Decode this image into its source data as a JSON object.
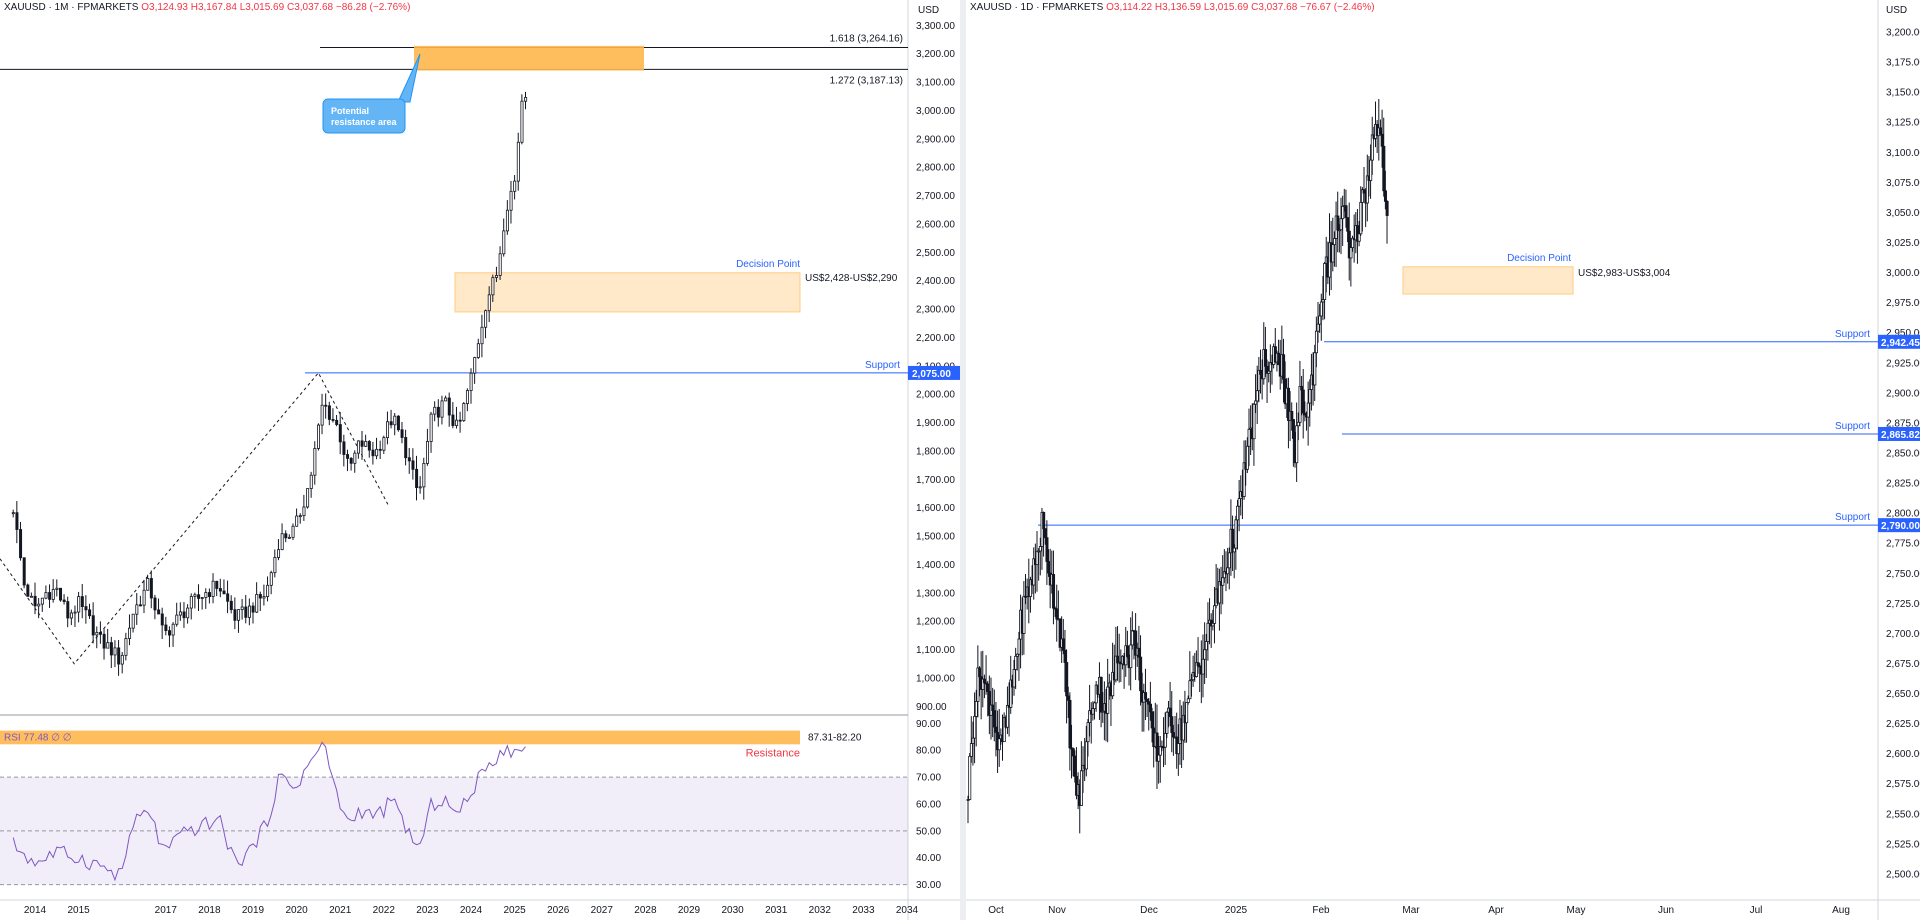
{
  "left": {
    "legend": {
      "symbol": "XAUUSD · 1M · FPMARKETS",
      "open": "O3,124.93",
      "high": "H3,167.84",
      "low": "L3,015.69",
      "close": "C3,037.68",
      "change": "−86.28 (−2.76%)"
    },
    "currency": "USD",
    "fib_1618": "1.618 (3,264.16)",
    "fib_1272": "1.272 (3,187.13)",
    "callout": [
      "Potential",
      "resistance area"
    ],
    "decision_label": "Decision Point",
    "decision_zone": "US$2,428-US$2,290",
    "support_label": "Support",
    "support_tag": "2,075.00",
    "rsi_legend": "RSI  77.48  ∅  ∅",
    "rsi_zone": "87.31-82.20",
    "rsi_resistance": "Resistance",
    "colors": {
      "support": "#2962ff",
      "zone": "#ffb74d",
      "rsi": "#7e57c2",
      "resistance": "#f23645"
    }
  },
  "right": {
    "legend": {
      "symbol": "XAUUSD · 1D · FPMARKETS",
      "open": "O3,114.22",
      "high": "H3,136.59",
      "low": "L3,015.69",
      "close": "C3,037.68",
      "change": "−76.67 (−2.46%)"
    },
    "currency": "USD",
    "decision_label": "Decision Point",
    "decision_zone": "US$2,983-US$3,004",
    "support_label": "Support",
    "support_tags": [
      "2,942.45",
      "2,865.82",
      "2,790.00"
    ]
  },
  "chart_data": [
    {
      "type": "candlestick",
      "timeframe": "1M",
      "x_ticks": [
        "2014",
        "2015",
        "2017",
        "2018",
        "2019",
        "2020",
        "2021",
        "2022",
        "2023",
        "2024",
        "2025",
        "2026",
        "2027",
        "2028",
        "2029",
        "2030",
        "2031",
        "2032",
        "2033",
        "2034"
      ],
      "y_ticks": [
        "3,300.00",
        "3,200.00",
        "3,100.00",
        "3,000.00",
        "2,900.00",
        "2,800.00",
        "2,700.00",
        "2,600.00",
        "2,500.00",
        "2,400.00",
        "2,300.00",
        "2,200.00",
        "2,100.00",
        "2,000.00",
        "1,900.00",
        "1,800.00",
        "1,700.00",
        "1,600.00",
        "1,500.00",
        "1,400.00",
        "1,300.00",
        "1,200.00",
        "1,100.00",
        "1,000.00",
        "900.00"
      ],
      "ylim": [
        880,
        3340
      ],
      "series": [
        {
          "values": [
            [
              2013.5,
              1600
            ],
            [
              2013.75,
              1330
            ],
            [
              2014.0,
              1240
            ],
            [
              2014.25,
              1300
            ],
            [
              2014.5,
              1310
            ],
            [
              2014.75,
              1220
            ],
            [
              2015.0,
              1260
            ],
            [
              2015.25,
              1200
            ],
            [
              2015.5,
              1130
            ],
            [
              2015.75,
              1100
            ],
            [
              2015.95,
              1060
            ],
            [
              2016.25,
              1230
            ],
            [
              2016.6,
              1330
            ],
            [
              2016.95,
              1150
            ],
            [
              2017.5,
              1250
            ],
            [
              2017.9,
              1300
            ],
            [
              2018.2,
              1330
            ],
            [
              2018.6,
              1210
            ],
            [
              2018.9,
              1240
            ],
            [
              2019.3,
              1300
            ],
            [
              2019.6,
              1490
            ],
            [
              2019.95,
              1520
            ],
            [
              2020.3,
              1690
            ],
            [
              2020.6,
              1970
            ],
            [
              2020.95,
              1880
            ],
            [
              2021.2,
              1730
            ],
            [
              2021.45,
              1830
            ],
            [
              2021.8,
              1790
            ],
            [
              2022.2,
              1920
            ],
            [
              2022.5,
              1800
            ],
            [
              2022.8,
              1640
            ],
            [
              2023.1,
              1920
            ],
            [
              2023.4,
              1970
            ],
            [
              2023.7,
              1870
            ],
            [
              2024.0,
              2060
            ],
            [
              2024.35,
              2330
            ],
            [
              2024.6,
              2430
            ],
            [
              2024.8,
              2660
            ],
            [
              2025.0,
              2750
            ],
            [
              2025.2,
              3100
            ],
            [
              2025.3,
              3040
            ]
          ]
        }
      ],
      "annotations": {
        "fib_levels": [
          3264.16,
          3187.13
        ],
        "resistance_box": [
          3190,
          3270
        ],
        "decision_zone": [
          2290,
          2428
        ],
        "support": 2075.0
      }
    },
    {
      "type": "line",
      "name": "RSI",
      "y_ticks": [
        "90.00",
        "80.00",
        "70.00",
        "60.00",
        "50.00",
        "40.00",
        "30.00"
      ],
      "ylim": [
        25,
        92
      ],
      "series": [
        {
          "values": [
            [
              2013.5,
              45
            ],
            [
              2014.0,
              38
            ],
            [
              2014.5,
              42
            ],
            [
              2015.0,
              40
            ],
            [
              2015.5,
              37
            ],
            [
              2015.95,
              33
            ],
            [
              2016.25,
              52
            ],
            [
              2016.6,
              58
            ],
            [
              2016.95,
              42
            ],
            [
              2017.5,
              50
            ],
            [
              2017.9,
              52
            ],
            [
              2018.2,
              55
            ],
            [
              2018.6,
              38
            ],
            [
              2018.9,
              42
            ],
            [
              2019.3,
              52
            ],
            [
              2019.6,
              70
            ],
            [
              2019.95,
              66
            ],
            [
              2020.3,
              75
            ],
            [
              2020.6,
              83
            ],
            [
              2020.95,
              62
            ],
            [
              2021.2,
              52
            ],
            [
              2021.45,
              58
            ],
            [
              2021.8,
              55
            ],
            [
              2022.2,
              61
            ],
            [
              2022.5,
              52
            ],
            [
              2022.8,
              42
            ],
            [
              2023.1,
              60
            ],
            [
              2023.4,
              62
            ],
            [
              2023.7,
              55
            ],
            [
              2024.0,
              65
            ],
            [
              2024.35,
              73
            ],
            [
              2024.6,
              78
            ],
            [
              2024.8,
              82
            ],
            [
              2025.0,
              78
            ],
            [
              2025.2,
              82
            ],
            [
              2025.3,
              77
            ]
          ]
        }
      ],
      "annotations": {
        "zone": [
          82.2,
          87.31
        ],
        "levels": [
          70,
          50,
          30
        ]
      }
    },
    {
      "type": "candlestick",
      "timeframe": "1D",
      "x_ticks": [
        "Oct",
        "Nov",
        "Dec",
        "2025",
        "Feb",
        "Mar",
        "Apr",
        "May",
        "Jun",
        "Jul",
        "Aug"
      ],
      "y_ticks": [
        "3,200.00",
        "3,175.00",
        "3,150.00",
        "3,125.00",
        "3,100.00",
        "3,075.00",
        "3,050.00",
        "3,025.00",
        "3,000.00",
        "2,975.00",
        "2,950.00",
        "2,925.00",
        "2,900.00",
        "2,875.00",
        "2,850.00",
        "2,825.00",
        "2,800.00",
        "2,775.00",
        "2,750.00",
        "2,725.00",
        "2,700.00",
        "2,675.00",
        "2,650.00",
        "2,625.00",
        "2,600.00",
        "2,575.00",
        "2,550.00",
        "2,525.00",
        "2,500.00"
      ],
      "ylim": [
        2480,
        3215
      ],
      "series": [
        {
          "values": [
            [
              0,
              2570
            ],
            [
              6,
              2640
            ],
            [
              12,
              2670
            ],
            [
              18,
              2650
            ],
            [
              24,
              2640
            ],
            [
              30,
              2600
            ],
            [
              36,
              2620
            ],
            [
              42,
              2650
            ],
            [
              48,
              2690
            ],
            [
              54,
              2720
            ],
            [
              60,
              2740
            ],
            [
              66,
              2760
            ],
            [
              72,
              2790
            ],
            [
              78,
              2760
            ],
            [
              84,
              2730
            ],
            [
              90,
              2700
            ],
            [
              96,
              2650
            ],
            [
              102,
              2590
            ],
            [
              108,
              2560
            ],
            [
              114,
              2600
            ],
            [
              120,
              2640
            ],
            [
              126,
              2660
            ],
            [
              132,
              2640
            ],
            [
              138,
              2650
            ],
            [
              144,
              2670
            ],
            [
              150,
              2690
            ],
            [
              156,
              2680
            ],
            [
              162,
              2700
            ],
            [
              168,
              2660
            ],
            [
              174,
              2640
            ],
            [
              180,
              2610
            ],
            [
              186,
              2600
            ],
            [
              192,
              2620
            ],
            [
              198,
              2630
            ],
            [
              204,
              2610
            ],
            [
              210,
              2630
            ],
            [
              216,
              2650
            ],
            [
              222,
              2670
            ],
            [
              228,
              2680
            ],
            [
              234,
              2700
            ],
            [
              240,
              2720
            ],
            [
              246,
              2740
            ],
            [
              252,
              2760
            ],
            [
              258,
              2780
            ],
            [
              264,
              2800
            ],
            [
              270,
              2840
            ],
            [
              276,
              2870
            ],
            [
              282,
              2900
            ],
            [
              288,
              2930
            ],
            [
              294,
              2910
            ],
            [
              300,
              2940
            ],
            [
              306,
              2920
            ],
            [
              312,
              2880
            ],
            [
              318,
              2850
            ],
            [
              324,
              2900
            ],
            [
              330,
              2880
            ],
            [
              336,
              2920
            ],
            [
              342,
              2970
            ],
            [
              348,
              3000
            ],
            [
              354,
              3020
            ],
            [
              360,
              3040
            ],
            [
              366,
              3050
            ],
            [
              372,
              3010
            ],
            [
              378,
              3030
            ],
            [
              384,
              3060
            ],
            [
              390,
              3080
            ],
            [
              396,
              3130
            ],
            [
              402,
              3110
            ],
            [
              408,
              3040
            ]
          ]
        }
      ],
      "annotations": {
        "decision_zone": [
          2983,
          3004
        ],
        "supports": [
          2942.45,
          2865.82,
          2790.0
        ]
      }
    }
  ]
}
